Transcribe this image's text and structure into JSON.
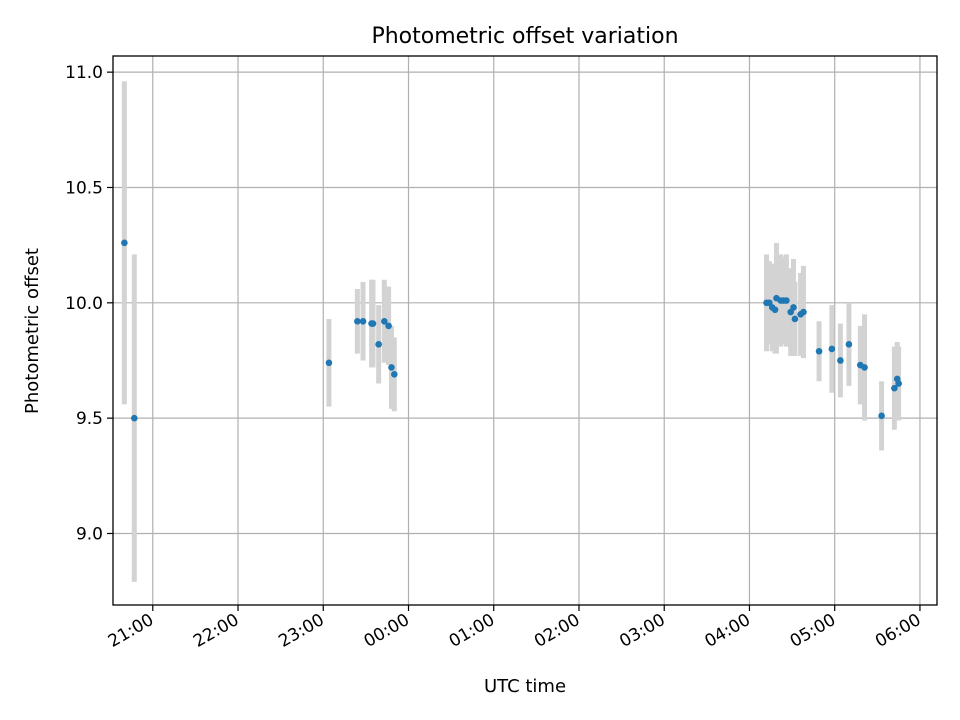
{
  "chart_data": {
    "type": "scatter",
    "title": "Photometric offset variation",
    "xlabel": "UTC time",
    "ylabel": "Photometric offset",
    "xlim": [
      "20:32",
      "06:12"
    ],
    "ylim": [
      8.69,
      11.07
    ],
    "x_ticks": [
      "21:00",
      "22:00",
      "23:00",
      "00:00",
      "01:00",
      "02:00",
      "03:00",
      "04:00",
      "05:00",
      "06:00"
    ],
    "y_ticks": [
      "9.0",
      "9.5",
      "10.0",
      "10.5",
      "11.0"
    ],
    "grid": true,
    "colors": {
      "point": "#1f77b4",
      "errorbar": "#d3d3d3",
      "grid": "#b0b0b0"
    },
    "points": [
      {
        "x": "20:40",
        "y": 10.26,
        "yerr": 0.7
      },
      {
        "x": "20:47",
        "y": 9.5,
        "yerr": 0.71
      },
      {
        "x": "23:04",
        "y": 9.74,
        "yerr": 0.19
      },
      {
        "x": "23:24",
        "y": 9.92,
        "yerr": 0.14
      },
      {
        "x": "23:28",
        "y": 9.92,
        "yerr": 0.17
      },
      {
        "x": "23:34",
        "y": 9.91,
        "yerr": 0.19
      },
      {
        "x": "23:35",
        "y": 9.91,
        "yerr": 0.19
      },
      {
        "x": "23:39",
        "y": 9.82,
        "yerr": 0.17
      },
      {
        "x": "23:43",
        "y": 9.92,
        "yerr": 0.18
      },
      {
        "x": "23:46",
        "y": 9.9,
        "yerr": 0.17
      },
      {
        "x": "23:48",
        "y": 9.72,
        "yerr": 0.18
      },
      {
        "x": "23:50",
        "y": 9.69,
        "yerr": 0.16
      },
      {
        "x": "04:12",
        "y": 10.0,
        "yerr": 0.21
      },
      {
        "x": "04:14",
        "y": 10.0,
        "yerr": 0.18
      },
      {
        "x": "04:16",
        "y": 9.98,
        "yerr": 0.19
      },
      {
        "x": "04:18",
        "y": 9.97,
        "yerr": 0.19
      },
      {
        "x": "04:19",
        "y": 10.02,
        "yerr": 0.24
      },
      {
        "x": "04:22",
        "y": 10.01,
        "yerr": 0.2
      },
      {
        "x": "04:24",
        "y": 10.01,
        "yerr": 0.19
      },
      {
        "x": "04:26",
        "y": 10.01,
        "yerr": 0.2
      },
      {
        "x": "04:29",
        "y": 9.96,
        "yerr": 0.19
      },
      {
        "x": "04:31",
        "y": 9.98,
        "yerr": 0.21
      },
      {
        "x": "04:32",
        "y": 9.93,
        "yerr": 0.16
      },
      {
        "x": "04:36",
        "y": 9.95,
        "yerr": 0.18
      },
      {
        "x": "04:38",
        "y": 9.96,
        "yerr": 0.2
      },
      {
        "x": "04:49",
        "y": 9.79,
        "yerr": 0.13
      },
      {
        "x": "04:58",
        "y": 9.8,
        "yerr": 0.19
      },
      {
        "x": "05:04",
        "y": 9.75,
        "yerr": 0.16
      },
      {
        "x": "05:10",
        "y": 9.82,
        "yerr": 0.18
      },
      {
        "x": "05:18",
        "y": 9.73,
        "yerr": 0.17
      },
      {
        "x": "05:21",
        "y": 9.72,
        "yerr": 0.23
      },
      {
        "x": "05:33",
        "y": 9.51,
        "yerr": 0.15
      },
      {
        "x": "05:42",
        "y": 9.63,
        "yerr": 0.18
      },
      {
        "x": "05:44",
        "y": 9.67,
        "yerr": 0.16
      },
      {
        "x": "05:45",
        "y": 9.65,
        "yerr": 0.16
      }
    ]
  }
}
